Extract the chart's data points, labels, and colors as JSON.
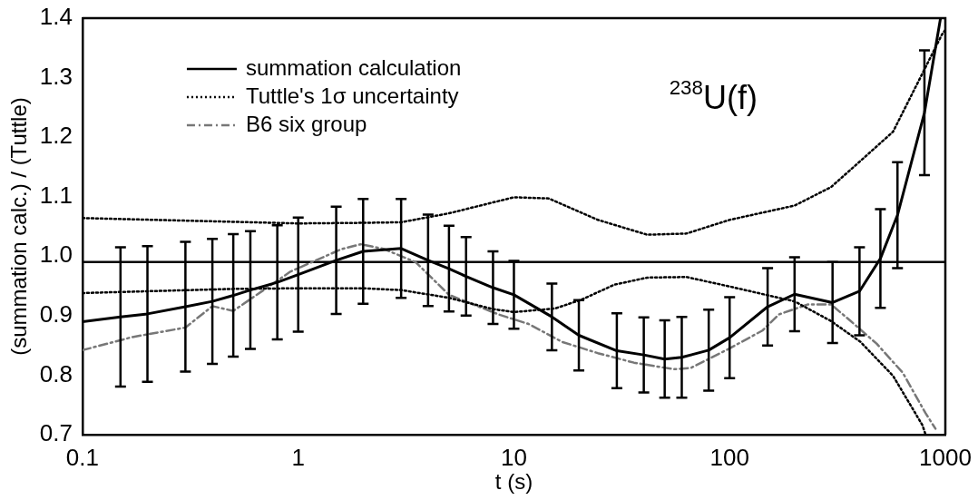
{
  "chart_data": {
    "type": "line",
    "xlabel": "t (s)",
    "ylabel": "(summation calc.) / (Tuttle)",
    "log": "x",
    "xlim": [
      0.1,
      1000
    ],
    "xticks": [
      0.1,
      1,
      10,
      100,
      1000
    ],
    "ylim": [
      0.7,
      1.4
    ],
    "yticks": [
      0.7,
      0.8,
      0.9,
      {
        "value": 1,
        "label": "1.0"
      },
      1.1,
      1.2,
      1.3,
      1.4
    ],
    "grid": false,
    "legend": "top left",
    "marker": "none",
    "annotations": [
      "$^{238}$U(f)"
    ],
    "ref_lines": [
      {
        "axis": "y",
        "value": 0.99,
        "color": "#000000",
        "line_style": "solid"
      }
    ],
    "series": [
      {
        "name": "summation calculation",
        "color": "#000000",
        "line_style": "solid",
        "x": [
          0.1,
          0.15,
          0.2,
          0.3,
          0.4,
          0.5,
          0.6,
          0.8,
          1,
          1.5,
          2,
          3,
          4,
          5,
          6,
          8,
          10,
          15,
          20,
          30,
          40,
          50,
          60,
          80,
          100,
          150,
          200,
          300,
          400,
          500,
          600,
          800,
          950
        ],
        "values": [
          0.89,
          0.898,
          0.903,
          0.915,
          0.924,
          0.934,
          0.943,
          0.956,
          0.969,
          0.993,
          1.008,
          1.013,
          0.993,
          0.979,
          0.966,
          0.947,
          0.935,
          0.898,
          0.867,
          0.841,
          0.834,
          0.827,
          0.83,
          0.842,
          0.863,
          0.915,
          0.936,
          0.922,
          0.941,
          0.996,
          1.069,
          1.241,
          1.4
        ],
        "errors": [
          null,
          0.117,
          0.114,
          0.109,
          0.105,
          0.103,
          0.099,
          0.096,
          0.096,
          0.09,
          0.088,
          0.083,
          0.077,
          0.072,
          0.066,
          0.061,
          0.057,
          0.056,
          0.059,
          0.063,
          0.063,
          0.065,
          0.068,
          0.068,
          0.068,
          0.065,
          0.062,
          0.068,
          0.074,
          0.083,
          0.089,
          0.105,
          null
        ]
      },
      {
        "name": "Tuttle's 1σ uncertainty",
        "color": "#000000",
        "line_style": "dotted",
        "x": [
          0.1,
          1,
          2,
          3,
          5,
          10,
          14.5,
          24.5,
          41.5,
          63,
          100,
          200,
          295,
          404,
          572,
          783,
          966,
          1000
        ],
        "values": [
          1.064,
          1.055,
          1.056,
          1.057,
          1.072,
          1.099,
          1.097,
          1.061,
          1.036,
          1.038,
          1.061,
          1.085,
          1.116,
          1.16,
          1.209,
          1.307,
          1.373,
          1.38
        ]
      },
      {
        "color": "#000000",
        "line_style": "dotted",
        "x": [
          0.1,
          0.5,
          1,
          2,
          3,
          5,
          8,
          10,
          15.5,
          20.6,
          29.2,
          41.5,
          63,
          100,
          200,
          295,
          404,
          572,
          783,
          810
        ],
        "values": [
          0.938,
          0.945,
          0.946,
          0.946,
          0.943,
          0.93,
          0.911,
          0.906,
          0.912,
          0.927,
          0.952,
          0.964,
          0.965,
          0.949,
          0.924,
          0.891,
          0.856,
          0.799,
          0.716,
          0.7
        ]
      },
      {
        "name": "B6 six group",
        "color": "#777777",
        "line_style": "dashdot",
        "x": [
          0.1,
          0.17,
          0.3,
          0.4,
          0.5,
          0.92,
          1.59,
          1.95,
          2.5,
          3.5,
          5,
          8.5,
          11.7,
          16.7,
          24.5,
          36,
          55,
          66,
          100,
          142,
          169,
          231,
          295,
          364,
          480,
          635,
          810,
          900
        ],
        "values": [
          0.842,
          0.864,
          0.88,
          0.916,
          0.908,
          0.974,
          1.012,
          1.02,
          1.012,
          0.99,
          0.935,
          0.902,
          0.886,
          0.856,
          0.837,
          0.821,
          0.81,
          0.812,
          0.845,
          0.875,
          0.902,
          0.919,
          0.919,
          0.891,
          0.853,
          0.804,
          0.736,
          0.71
        ]
      }
    ]
  }
}
